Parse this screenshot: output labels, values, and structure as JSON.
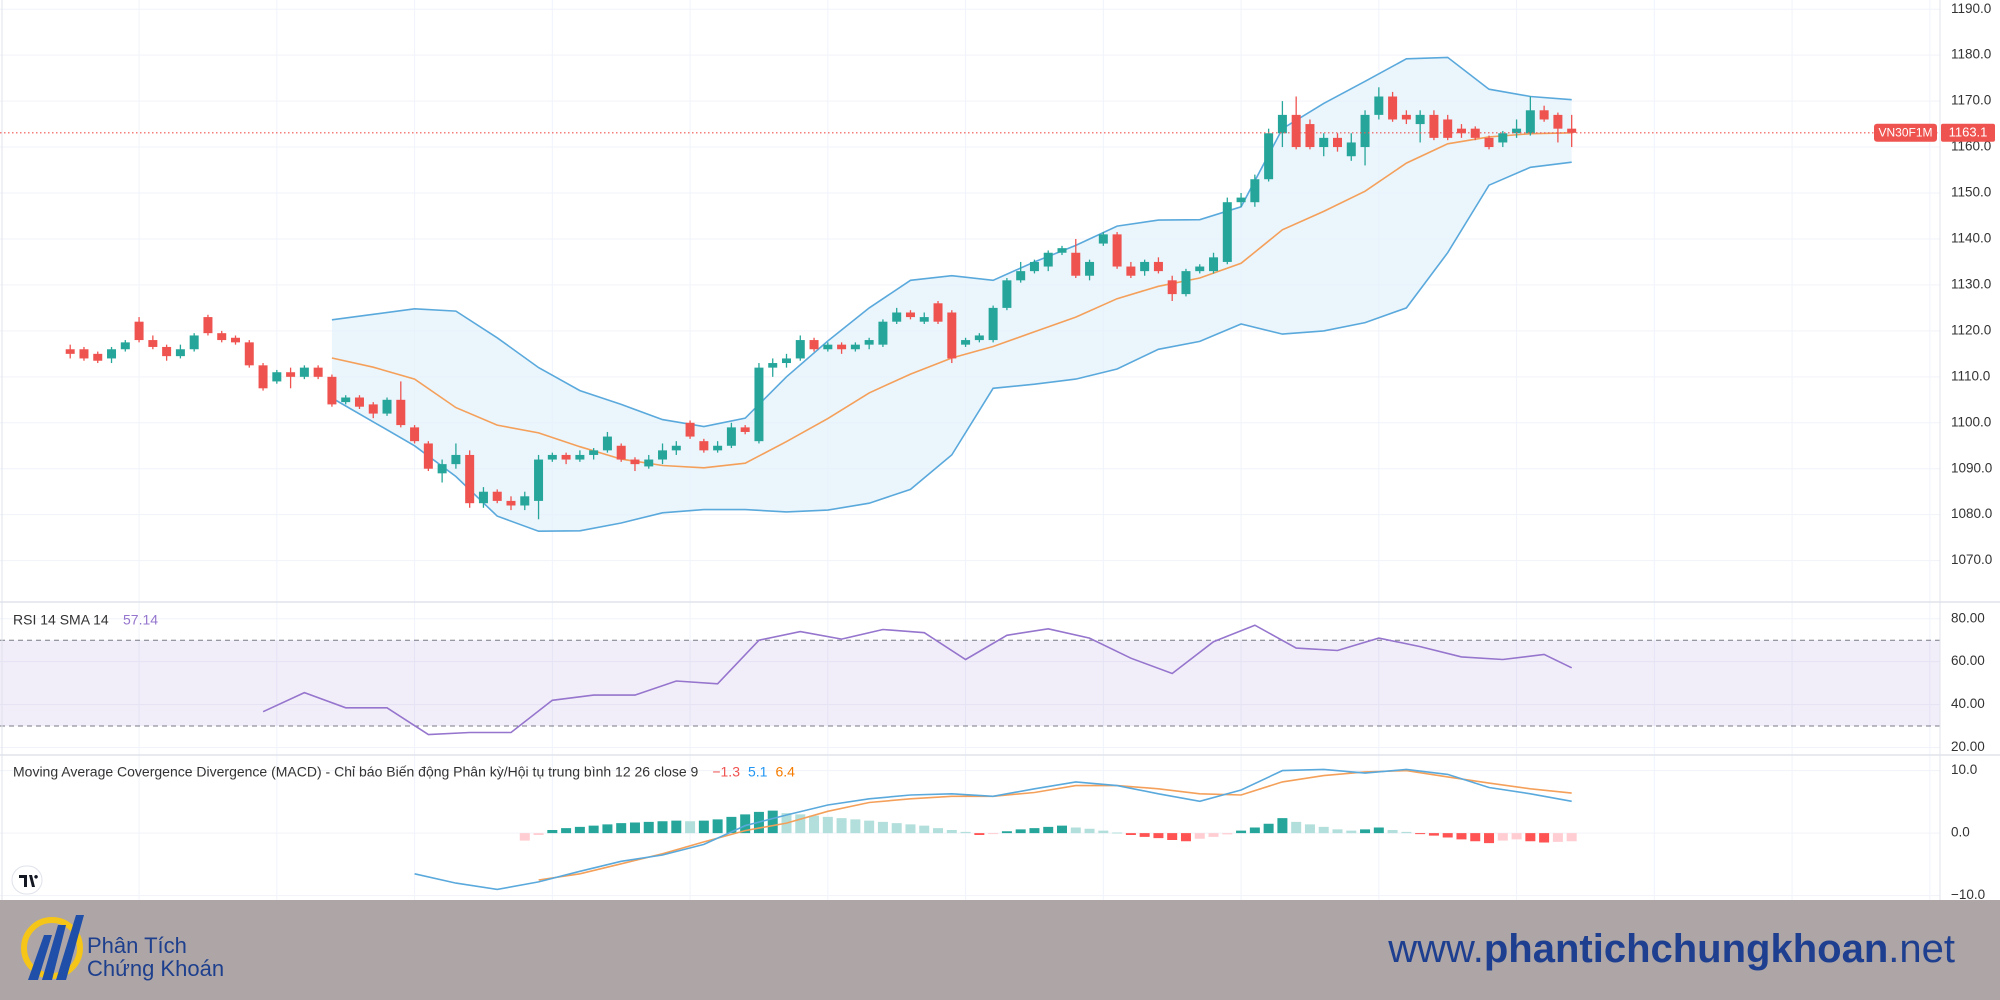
{
  "chart_data": {
    "type": "candlestick",
    "symbol": "VN30F1M",
    "up_color": "#26a69a",
    "down_color": "#ef5350",
    "ylim": [
      1061,
      1192
    ],
    "yticks": [
      {
        "value": 1070,
        "label": "1070.0"
      },
      {
        "value": 1080,
        "label": "1080.0"
      },
      {
        "value": 1090,
        "label": "1090.0"
      },
      {
        "value": 1100,
        "label": "1100.0"
      },
      {
        "value": 1110,
        "label": "1110.0"
      },
      {
        "value": 1120,
        "label": "1120.0"
      },
      {
        "value": 1130,
        "label": "1130.0"
      },
      {
        "value": 1140,
        "label": "1140.0"
      },
      {
        "value": 1150,
        "label": "1150.0"
      },
      {
        "value": 1160,
        "label": "1160.0"
      },
      {
        "value": 1170,
        "label": "1170.0"
      },
      {
        "value": 1180,
        "label": "1180.0"
      },
      {
        "value": 1190,
        "label": "1190.0"
      }
    ],
    "grid": true,
    "candles": [
      [
        1116,
        1117,
        1114,
        1115
      ],
      [
        1116,
        1116.5,
        1113.5,
        1114
      ],
      [
        1115,
        1115.5,
        1113,
        1113.5
      ],
      [
        1114,
        1116.5,
        1113,
        1116
      ],
      [
        1116,
        1118,
        1115.5,
        1117.5
      ],
      [
        1122,
        1123,
        1117.5,
        1118
      ],
      [
        1118,
        1119,
        1116,
        1116.5
      ],
      [
        1116.5,
        1117,
        1113.5,
        1114.5
      ],
      [
        1114.5,
        1117,
        1114,
        1116
      ],
      [
        1116,
        1119.5,
        1115.5,
        1119
      ],
      [
        1123,
        1123.5,
        1119,
        1119.5
      ],
      [
        1119.5,
        1120,
        1117.5,
        1118
      ],
      [
        1118.5,
        1119,
        1117,
        1117.5
      ],
      [
        1117.5,
        1118,
        1112,
        1112.5
      ],
      [
        1112.5,
        1113,
        1107,
        1107.5
      ],
      [
        1109,
        1111.5,
        1108.5,
        1111
      ],
      [
        1111,
        1112,
        1107.5,
        1110
      ],
      [
        1110,
        1112.5,
        1109.5,
        1112
      ],
      [
        1112,
        1112.5,
        1109.5,
        1110
      ],
      [
        1110,
        1110.5,
        1103.5,
        1104
      ],
      [
        1104.5,
        1106,
        1104,
        1105.5
      ],
      [
        1105.5,
        1106,
        1103,
        1103.5
      ],
      [
        1104,
        1104.5,
        1101,
        1102
      ],
      [
        1102,
        1105.5,
        1101.5,
        1105
      ],
      [
        1105,
        1109,
        1099,
        1099.5
      ],
      [
        1099,
        1099.5,
        1095.5,
        1096
      ],
      [
        1095.5,
        1096,
        1089.5,
        1090
      ],
      [
        1089,
        1092,
        1087,
        1091
      ],
      [
        1091,
        1095.5,
        1090,
        1093
      ],
      [
        1093,
        1094,
        1081.5,
        1082.5
      ],
      [
        1082.5,
        1086,
        1081.5,
        1085
      ],
      [
        1085,
        1085.5,
        1082.5,
        1083
      ],
      [
        1083,
        1084,
        1081,
        1082
      ],
      [
        1082,
        1085,
        1081,
        1084
      ],
      [
        1083,
        1093,
        1079,
        1092
      ],
      [
        1092,
        1093.5,
        1091.5,
        1093
      ],
      [
        1093,
        1093.5,
        1091,
        1092
      ],
      [
        1092,
        1094,
        1091.5,
        1093
      ],
      [
        1093,
        1094.5,
        1092,
        1094
      ],
      [
        1094,
        1098,
        1093.5,
        1097
      ],
      [
        1095,
        1095.5,
        1091.5,
        1092
      ],
      [
        1092,
        1092.5,
        1089.5,
        1091
      ],
      [
        1090.5,
        1093,
        1090,
        1092
      ],
      [
        1092,
        1095.5,
        1091,
        1094
      ],
      [
        1094,
        1096,
        1093,
        1095
      ],
      [
        1100,
        1100.5,
        1096.5,
        1097
      ],
      [
        1096,
        1096.5,
        1093.5,
        1094
      ],
      [
        1094,
        1096,
        1093.5,
        1095
      ],
      [
        1095,
        1100,
        1094.5,
        1099
      ],
      [
        1099,
        1099.5,
        1097.5,
        1098
      ],
      [
        1096,
        1113,
        1095.5,
        1112
      ],
      [
        1112,
        1114,
        1110,
        1113
      ],
      [
        1113,
        1115,
        1112,
        1114
      ],
      [
        1114,
        1119,
        1113.5,
        1118
      ],
      [
        1118,
        1118.5,
        1115.5,
        1116
      ],
      [
        1116,
        1117.5,
        1115.5,
        1117
      ],
      [
        1117,
        1117.5,
        1115,
        1116
      ],
      [
        1116,
        1117.5,
        1115.5,
        1117
      ],
      [
        1117,
        1118.5,
        1116,
        1118
      ],
      [
        1117,
        1122.5,
        1116.5,
        1122
      ],
      [
        1122,
        1125,
        1121.5,
        1124
      ],
      [
        1124,
        1124.5,
        1122.5,
        1123
      ],
      [
        1122,
        1124,
        1121.5,
        1123
      ],
      [
        1126,
        1126.5,
        1121.5,
        1122
      ],
      [
        1124,
        1124.5,
        1113,
        1114
      ],
      [
        1117,
        1118.5,
        1116.5,
        1118
      ],
      [
        1118,
        1119.5,
        1117.5,
        1119
      ],
      [
        1118,
        1125.5,
        1117.5,
        1125
      ],
      [
        1125,
        1131.5,
        1124.5,
        1131
      ],
      [
        1131,
        1135,
        1130.5,
        1133
      ],
      [
        1133,
        1135.5,
        1132.5,
        1135
      ],
      [
        1134,
        1137.5,
        1133,
        1137
      ],
      [
        1137,
        1138.5,
        1136.5,
        1138
      ],
      [
        1137,
        1140,
        1131.5,
        1132
      ],
      [
        1132,
        1135.5,
        1131,
        1135
      ],
      [
        1139,
        1141.5,
        1138.5,
        1141
      ],
      [
        1141,
        1141.5,
        1133.5,
        1134
      ],
      [
        1134,
        1135,
        1131.5,
        1132
      ],
      [
        1133,
        1135.5,
        1132,
        1135
      ],
      [
        1135,
        1136,
        1132.5,
        1133
      ],
      [
        1131,
        1132,
        1126.5,
        1128
      ],
      [
        1128,
        1133.5,
        1127.5,
        1133
      ],
      [
        1133,
        1134.5,
        1132.5,
        1134
      ],
      [
        1133,
        1137,
        1132.5,
        1136
      ],
      [
        1135,
        1149,
        1134.5,
        1148
      ],
      [
        1148,
        1150,
        1147,
        1149
      ],
      [
        1148,
        1154,
        1147,
        1153
      ],
      [
        1153,
        1164,
        1152.5,
        1163
      ],
      [
        1163,
        1170,
        1160,
        1167
      ],
      [
        1167,
        1171,
        1159.5,
        1160
      ],
      [
        1165,
        1166,
        1159.5,
        1160
      ],
      [
        1160,
        1163,
        1158,
        1162
      ],
      [
        1162,
        1163,
        1159,
        1160
      ],
      [
        1158,
        1163,
        1157,
        1161
      ],
      [
        1160,
        1168,
        1156,
        1167
      ],
      [
        1167,
        1173,
        1166,
        1171
      ],
      [
        1171,
        1172,
        1165.5,
        1166
      ],
      [
        1167,
        1168,
        1165,
        1166
      ],
      [
        1165,
        1168,
        1161,
        1167
      ],
      [
        1167,
        1168,
        1161.5,
        1162
      ],
      [
        1166,
        1167,
        1161.5,
        1162
      ],
      [
        1164,
        1165,
        1162,
        1163
      ],
      [
        1164,
        1164.5,
        1161.5,
        1162
      ],
      [
        1162,
        1162.5,
        1159.5,
        1160
      ],
      [
        1161,
        1163.5,
        1160,
        1163
      ],
      [
        1163,
        1166,
        1162,
        1164
      ],
      [
        1163,
        1171,
        1162.5,
        1168
      ],
      [
        1168,
        1169,
        1165.5,
        1166
      ],
      [
        1167,
        1167.5,
        1161,
        1164
      ],
      [
        1164,
        1167,
        1160,
        1163.1
      ]
    ],
    "bollinger": {
      "band_color": "#5aa9dc",
      "basis_color": "#f4a05a",
      "fill_color": "#e3f1fb",
      "index": [
        19,
        22,
        25,
        28,
        31,
        34,
        37,
        40,
        43,
        46,
        49,
        52,
        55,
        58,
        61,
        64,
        67,
        70,
        73,
        76,
        79,
        82,
        85,
        88,
        91,
        94,
        97,
        100,
        103,
        106,
        109
      ],
      "upper": [
        1122.4,
        1123.6,
        1124.8,
        1124.3,
        1118.5,
        1112,
        1107,
        1104,
        1100.7,
        1099.2,
        1101,
        1110,
        1117.8,
        1125,
        1131,
        1132,
        1131,
        1135,
        1138.6,
        1142.8,
        1144.1,
        1144.2,
        1147,
        1164,
        1169.5,
        1174.3,
        1179.2,
        1179.5,
        1172.6,
        1171,
        1170.3
      ],
      "middle": [
        1114.1,
        1112.1,
        1109.5,
        1103.3,
        1099.5,
        1097.8,
        1094.8,
        1092.1,
        1090.7,
        1090.2,
        1091.2,
        1095.9,
        1100.9,
        1106.5,
        1110.6,
        1114.1,
        1116.6,
        1119.8,
        1123,
        1127,
        1129.7,
        1131.5,
        1134.7,
        1142,
        1146,
        1150.4,
        1156.5,
        1160.7,
        1162.2,
        1162.9,
        1163.1
      ],
      "lower": [
        1105.4,
        1100.2,
        1095,
        1088.3,
        1079.7,
        1076.4,
        1076.5,
        1078.2,
        1080.4,
        1081.1,
        1081.1,
        1080.6,
        1081,
        1082.5,
        1085.5,
        1093,
        1107.5,
        1108.4,
        1109.5,
        1111.7,
        1116,
        1117.7,
        1121.5,
        1119.3,
        1120,
        1121.8,
        1125,
        1137,
        1151.7,
        1155.6,
        1156.7
      ]
    },
    "rsi": {
      "title": "RSI 14 SMA 14",
      "color": "#9575cd",
      "ylim": [
        16.5,
        87.8
      ],
      "yticks": [
        {
          "value": 20,
          "label": "20.00"
        },
        {
          "value": 40,
          "label": "40.00"
        },
        {
          "value": 60,
          "label": "60.00"
        },
        {
          "value": 80,
          "label": "80.00"
        }
      ],
      "levels": [
        70,
        30
      ],
      "index": [
        14,
        17,
        20,
        23,
        26,
        29,
        32,
        35,
        38,
        41,
        44,
        47,
        50,
        53,
        56,
        59,
        62,
        65,
        68,
        71,
        74,
        77,
        80,
        83,
        86,
        89,
        92,
        95,
        98,
        101,
        104,
        107,
        109
      ],
      "values": [
        36.7,
        45.6,
        38.5,
        38.5,
        26,
        27,
        27,
        42,
        44.4,
        44.4,
        51,
        49.7,
        70,
        74,
        70.5,
        75,
        73.5,
        61,
        72.3,
        75.3,
        71,
        61.6,
        54.5,
        69.3,
        77,
        66.3,
        65.2,
        71,
        67,
        62.2,
        61,
        63.4,
        57.14
      ]
    },
    "macd": {
      "title": "Moving Average Covergence Divergence (MACD) - Chỉ báo Biến động Phân kỳ/Hội tụ trung bình 12 26 close 9",
      "macd_color": "#5aa9dc",
      "signal_color": "#f4a05a",
      "hist_colors": [
        "#26a69a",
        "#b2dfdb",
        "#ff5252",
        "#ffcdd2"
      ],
      "ylim": [
        -10.7,
        12.5
      ],
      "yticks": [
        {
          "value": -10,
          "label": "−10.0"
        },
        {
          "value": 0,
          "label": "0.0"
        },
        {
          "value": 10,
          "label": "10.0"
        }
      ],
      "index": [
        25,
        28,
        31,
        34,
        37,
        40,
        43,
        46,
        49,
        52,
        55,
        58,
        61,
        64,
        67,
        70,
        73,
        76,
        79,
        82,
        85,
        88,
        91,
        94,
        97,
        100,
        103,
        106,
        109
      ],
      "values": [
        -6.5,
        -8,
        -9,
        -7.8,
        -6.1,
        -4.5,
        -3.5,
        -1.8,
        1.2,
        2.9,
        4.5,
        5.5,
        6.1,
        6.3,
        5.9,
        7.1,
        8.2,
        7.6,
        6.3,
        5.1,
        6.9,
        10,
        10.2,
        9.6,
        10.2,
        9.4,
        7.3,
        6.3,
        5.1
      ],
      "signal_index": [
        34,
        37,
        40,
        43,
        46,
        49,
        52,
        55,
        58,
        61,
        64,
        67,
        70,
        73,
        76,
        79,
        82,
        85,
        88,
        91,
        94,
        97,
        100,
        103,
        106,
        109
      ],
      "signal": [
        -7.5,
        -6.5,
        -4.9,
        -3.3,
        -1.4,
        0.4,
        1.6,
        3.5,
        4.9,
        5.5,
        5.9,
        5.9,
        6.5,
        7.6,
        7.6,
        7.1,
        6.3,
        6.1,
        8.2,
        9.2,
        9.8,
        10,
        9,
        8,
        7.1,
        6.4
      ],
      "histogram": [
        null,
        null,
        null,
        null,
        null,
        null,
        null,
        null,
        null,
        null,
        null,
        null,
        null,
        null,
        null,
        null,
        null,
        null,
        null,
        null,
        null,
        null,
        null,
        null,
        null,
        null,
        null,
        null,
        null,
        null,
        null,
        null,
        null,
        -1.2,
        -0.3,
        0.5,
        0.8,
        1.0,
        1.2,
        1.4,
        1.6,
        1.7,
        1.8,
        1.9,
        2.0,
        1.9,
        2.0,
        2.2,
        2.6,
        3.0,
        3.4,
        3.6,
        3.2,
        3.0,
        2.8,
        2.6,
        2.4,
        2.2,
        2.0,
        1.8,
        1.6,
        1.4,
        1.2,
        0.8,
        0.5,
        0.2,
        -0.3,
        -0.1,
        0.3,
        0.6,
        0.8,
        1.0,
        1.2,
        0.9,
        0.7,
        0.4,
        0.1,
        -0.3,
        -0.6,
        -0.8,
        -1.1,
        -1.3,
        -0.9,
        -0.6,
        -0.2,
        0.4,
        0.9,
        1.5,
        2.4,
        1.8,
        1.4,
        1.0,
        0.6,
        0.4,
        0.6,
        0.9,
        0.5,
        0.2,
        -0.1,
        -0.4,
        -0.7,
        -1.0,
        -1.3,
        -1.6,
        -1.2,
        -1.0,
        -1.3,
        -1.5,
        -1.4,
        -1.3
      ],
      "histogram_last_label": "−1.3"
    }
  },
  "footer": {
    "logo_line1": "Phân Tích",
    "logo_line2": "Chứng Khoán",
    "url": [
      "www.",
      "phantichchungkhoan",
      ".net"
    ]
  }
}
